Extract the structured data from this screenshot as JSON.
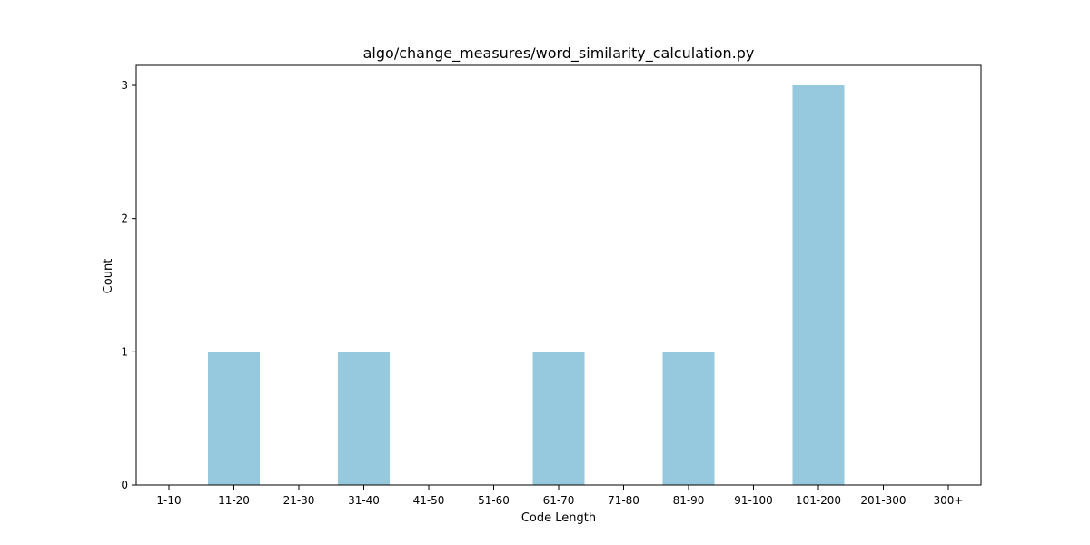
{
  "chart_data": {
    "type": "bar",
    "title": "algo/change_measures/word_similarity_calculation.py",
    "xlabel": "Code Length",
    "ylabel": "Count",
    "categories": [
      "1-10",
      "11-20",
      "21-30",
      "31-40",
      "41-50",
      "51-60",
      "61-70",
      "71-80",
      "81-90",
      "91-100",
      "101-200",
      "201-300",
      "300+"
    ],
    "values": [
      0,
      1,
      0,
      1,
      0,
      0,
      1,
      0,
      1,
      0,
      3,
      0,
      0
    ],
    "yticks": [
      0,
      1,
      2,
      3
    ],
    "ylim": [
      0,
      3.15
    ],
    "bar_color": "#96c9dd",
    "grid": false,
    "legend": false
  }
}
